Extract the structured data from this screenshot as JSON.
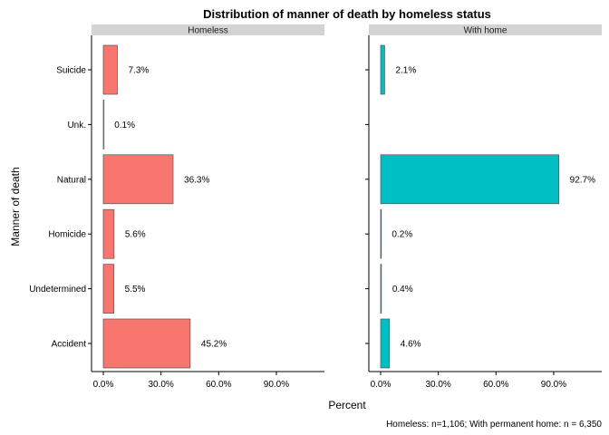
{
  "chart_data": {
    "type": "bar",
    "orientation": "horizontal",
    "title": "Distribution of manner of death by homeless status",
    "xlabel": "Percent",
    "ylabel": "Manner of death",
    "caption": "Homeless: n=1,106; With permanent home: n = 6,350",
    "categories": [
      "Suicide",
      "Unk.",
      "Natural",
      "Homicide",
      "Undetermined",
      "Accident"
    ],
    "xlim": [
      0,
      115
    ],
    "xticks": [
      0,
      30,
      60,
      90
    ],
    "xtick_labels": [
      "0.0%",
      "30.0%",
      "60.0%",
      "90.0%"
    ],
    "grid": false,
    "legend": "none",
    "panels": [
      {
        "name": "Homeless",
        "color": "#F8766D",
        "values": [
          7.3,
          0.1,
          36.3,
          5.6,
          5.5,
          45.2
        ],
        "labels": [
          "7.3%",
          "0.1%",
          "36.3%",
          "5.6%",
          "5.5%",
          "45.2%"
        ]
      },
      {
        "name": "With home",
        "color": "#00BFC4",
        "values": [
          2.1,
          null,
          92.7,
          0.2,
          0.4,
          4.6
        ],
        "labels": [
          "2.1%",
          "",
          "92.7%",
          "0.2%",
          "0.4%",
          "4.6%"
        ]
      }
    ]
  },
  "colors": {
    "strip_bg": "#D3D3D3",
    "axis": "#000000",
    "bar_outline": "#555555"
  }
}
